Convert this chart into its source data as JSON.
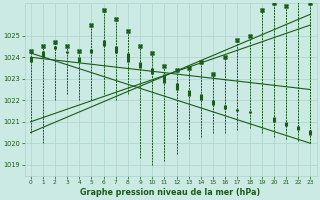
{
  "title": "Graphe pression niveau de la mer (hPa)",
  "bg_color": "#cceae4",
  "grid_color": "#aad4cc",
  "line_color": "#1a5c1a",
  "ylim": [
    1018.5,
    1026.5
  ],
  "xlim": [
    -0.5,
    23.5
  ],
  "yticks": [
    1019,
    1020,
    1021,
    1022,
    1023,
    1024,
    1025
  ],
  "xticks": [
    0,
    1,
    2,
    3,
    4,
    5,
    6,
    7,
    8,
    9,
    10,
    11,
    12,
    13,
    14,
    15,
    16,
    17,
    18,
    19,
    20,
    21,
    22,
    23
  ],
  "hours": [
    0,
    1,
    2,
    3,
    4,
    5,
    6,
    7,
    8,
    9,
    10,
    11,
    12,
    13,
    14,
    15,
    16,
    17,
    18,
    19,
    20,
    21,
    22,
    23
  ],
  "high": [
    1024.3,
    1024.5,
    1024.7,
    1024.5,
    1024.3,
    1025.5,
    1026.2,
    1025.8,
    1025.2,
    1024.5,
    1024.2,
    1023.6,
    1023.4,
    1023.5,
    1023.8,
    1023.2,
    1024.0,
    1024.8,
    1025.0,
    1026.2,
    1026.5,
    1026.4,
    1026.7,
    1026.5
  ],
  "low": [
    1020.5,
    1020.0,
    1022.0,
    1022.3,
    1022.0,
    1022.0,
    1022.3,
    1022.0,
    1022.3,
    1019.3,
    1019.0,
    1019.2,
    1019.5,
    1020.2,
    1020.3,
    1020.5,
    1020.5,
    1020.6,
    1020.7,
    1020.5,
    1020.3,
    1020.2,
    1020.1,
    1020.0
  ],
  "open": [
    1023.8,
    1024.0,
    1024.4,
    1024.2,
    1023.8,
    1024.2,
    1024.5,
    1024.2,
    1023.8,
    1023.5,
    1023.2,
    1022.8,
    1022.5,
    1022.2,
    1022.0,
    1021.8,
    1021.6,
    1021.5,
    1021.4,
    1021.3,
    1021.2,
    1021.0,
    1020.8,
    1020.6
  ],
  "close": [
    1024.0,
    1024.3,
    1024.5,
    1024.3,
    1024.0,
    1024.4,
    1024.8,
    1024.5,
    1024.2,
    1023.8,
    1023.5,
    1023.2,
    1022.8,
    1022.5,
    1022.3,
    1022.0,
    1021.8,
    1021.6,
    1021.5,
    1021.3,
    1021.0,
    1020.8,
    1020.6,
    1020.4
  ],
  "trend1_x": [
    0,
    23
  ],
  "trend1_y": [
    1024.2,
    1020.0
  ],
  "trend2_x": [
    0,
    23
  ],
  "trend2_y": [
    1020.5,
    1026.0
  ],
  "trend3_x": [
    0,
    23
  ],
  "trend3_y": [
    1024.0,
    1022.5
  ],
  "trend4_x": [
    0,
    23
  ],
  "trend4_y": [
    1021.0,
    1025.5
  ]
}
